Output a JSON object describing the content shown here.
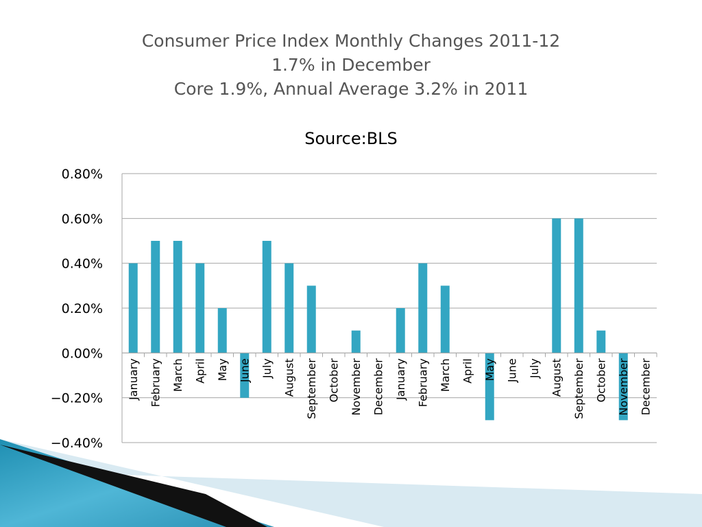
{
  "slide": {
    "title_lines": [
      "Consumer Price Index Monthly Changes 2011-12",
      "1.7% in December",
      "Core 1.9%, Annual Average 3.2% in 2011"
    ]
  },
  "chart_data": {
    "type": "bar",
    "title": "Source:BLS",
    "xlabel": "",
    "ylabel": "",
    "ylim": [
      -0.4,
      0.8
    ],
    "yticks": [
      0.8,
      0.6,
      0.4,
      0.2,
      0.0,
      -0.2,
      -0.4
    ],
    "ytick_labels": [
      "0.80%",
      "0.60%",
      "0.40%",
      "0.20%",
      "0.00%",
      "−0.20%",
      "−0.40%"
    ],
    "grid": true,
    "legend": "none",
    "bar_color": "#33A6C2",
    "categories": [
      "January",
      "February",
      "March",
      "April",
      "May",
      "June",
      "July",
      "August",
      "September",
      "October",
      "November",
      "December",
      "January",
      "February",
      "March",
      "April",
      "May",
      "June",
      "July",
      "August",
      "September",
      "October",
      "November",
      "December"
    ],
    "values": [
      0.4,
      0.5,
      0.5,
      0.4,
      0.2,
      -0.2,
      0.5,
      0.4,
      0.3,
      0.0,
      0.1,
      0.0,
      0.2,
      0.4,
      0.3,
      0.0,
      -0.3,
      0.0,
      0.0,
      0.6,
      0.6,
      0.1,
      -0.3,
      0.0
    ]
  }
}
